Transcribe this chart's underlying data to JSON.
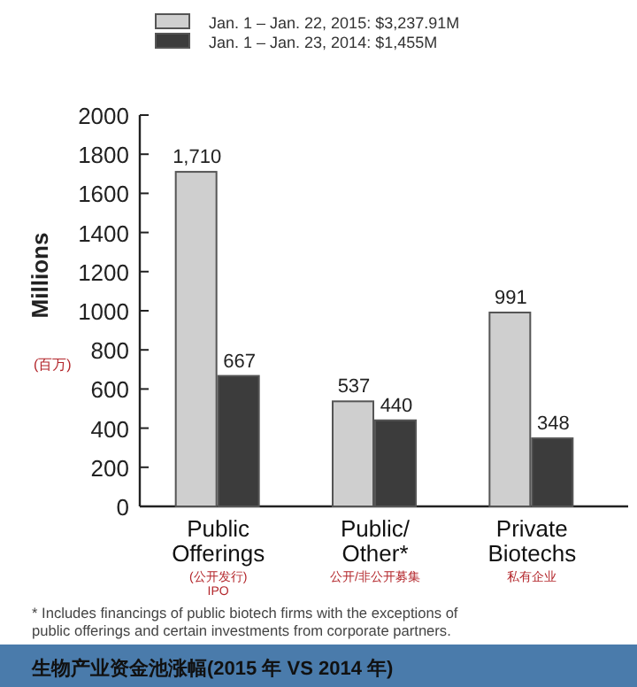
{
  "chart_data": {
    "type": "bar",
    "title": "生物产业资金池涨幅(2015 年 VS 2014 年)",
    "ylabel": "Millions",
    "categories": [
      "Public\nOfferings\n(公开发行)\nIPO",
      "Public/\nOther*\n公开/非公开募集",
      "Private\nBiotechs\n私有企业"
    ],
    "series": [
      {
        "name": "Jan. 1 – Jan. 22, 2015: $3,237.91M",
        "color": "#cfcfcf",
        "values": [
          1710,
          537,
          991
        ],
        "value_labels": [
          "1,710",
          "537",
          "991"
        ]
      },
      {
        "name": "Jan. 1 – Jan. 23, 2014: $1,455M",
        "color": "#3c3c3c",
        "values": [
          667,
          440,
          348
        ],
        "value_labels": [
          "667",
          "440",
          "348"
        ]
      }
    ],
    "ylim": [
      0,
      2000
    ],
    "yticks": [
      0,
      200,
      400,
      600,
      800,
      1000,
      1200,
      1400,
      1600,
      1800,
      2000
    ],
    "legend": "top",
    "grid": false,
    "annotations": [
      "(百万)",
      "* Includes financings of public biotech firms with the exceptions of public offerings and certain investments from corporate partners."
    ]
  }
}
